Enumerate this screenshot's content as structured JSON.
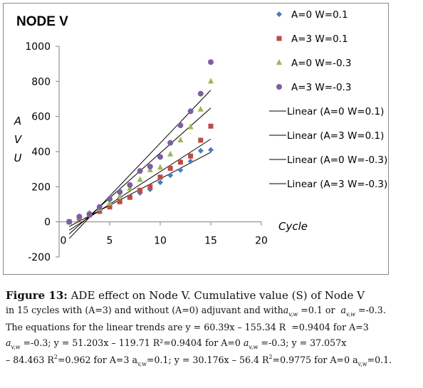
{
  "chart_data": {
    "type": "scatter",
    "title": "NODE V",
    "xlabel": "Cycle",
    "ylabel": "A V U",
    "xlim": [
      0,
      20
    ],
    "ylim": [
      -200,
      1000
    ],
    "x_ticks": [
      0,
      5,
      10,
      15,
      20
    ],
    "y_ticks": [
      -200,
      0,
      200,
      400,
      600,
      800,
      1000
    ],
    "legend_position": "right",
    "grid": false,
    "x": [
      1,
      2,
      3,
      4,
      5,
      6,
      7,
      8,
      9,
      10,
      11,
      12,
      13,
      14,
      15
    ],
    "series": [
      {
        "name": "A=0 W=0.1",
        "marker": "diamond",
        "color": "#4a7ebb",
        "values": [
          0,
          20,
          40,
          60,
          90,
          115,
          140,
          165,
          185,
          225,
          265,
          295,
          345,
          405,
          410
        ]
      },
      {
        "name": "A=3 W=0.1",
        "marker": "square",
        "color": "#be4b48",
        "values": [
          0,
          20,
          40,
          60,
          85,
          115,
          140,
          180,
          200,
          255,
          305,
          340,
          375,
          465,
          545
        ]
      },
      {
        "name": "A=0 W=-0.3",
        "marker": "triangle",
        "color": "#98b954",
        "values": [
          0,
          25,
          50,
          75,
          105,
          145,
          190,
          240,
          295,
          310,
          385,
          465,
          540,
          640,
          800
        ]
      },
      {
        "name": "A=3 W=-0.3",
        "marker": "circle",
        "color": "#7d60a0",
        "values": [
          0,
          30,
          45,
          85,
          130,
          170,
          210,
          290,
          315,
          370,
          450,
          550,
          630,
          730,
          910
        ]
      }
    ],
    "trendlines": [
      {
        "name": "Linear (A=0 W=0.1)",
        "slope": 30.176,
        "intercept": -56.4
      },
      {
        "name": "Linear (A=3 W=0.1)",
        "slope": 37.057,
        "intercept": -84.463
      },
      {
        "name": "Linear (A=0 W=-0.3)",
        "slope": 51.203,
        "intercept": -119.71
      },
      {
        "name": "Linear (A=3 W=-0.3)",
        "slope": 60.39,
        "intercept": -155.34
      }
    ]
  },
  "caption": {
    "label": "Figure 13:",
    "line1": " ADE effect on Node V. Cumulative value (S) of Node V",
    "l2a": "in 15 cycles with (A=3) and without (A=0) adjuvant and with",
    "l2b": "=0.1 or",
    "l2c": "=-0.3.",
    "l3a": "The equations for the linear trends are y = 60.39x – 155.34 R",
    "l3b": "=0.9404 for A=3",
    "l4a": "=-0.3; y = 51.203x – 119.71 R²=0.9404 for A=0",
    "l4b": "=-0.3;  y = 37.057x",
    "l5a": "– 84.463 R",
    "l5b": "2",
    "l5c": "=0.962 for A=3 a",
    "l5d": "v,w",
    "l5e": "=0.1; y = 30.176x – 56.4 R",
    "l5f": "2",
    "l5g": "=0.9775  for A=0 a",
    "l5h": "v,w",
    "l5i": "=0.1.",
    "a_symbol": "a",
    "vw_sub": "v,w"
  }
}
